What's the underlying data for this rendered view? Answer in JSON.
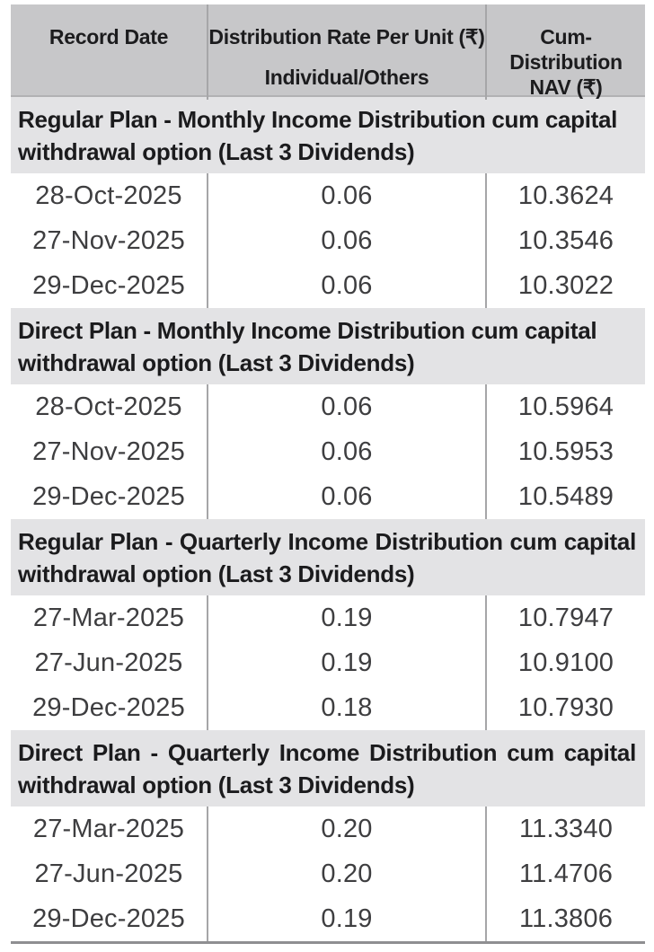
{
  "table": {
    "header": {
      "record_date": "Record Date",
      "rate_line1": "Distribution Rate Per Unit (₹)",
      "rate_line2": "Individual/Others",
      "nav_line1": "Cum-Distribution",
      "nav_line2": "NAV (₹)"
    },
    "sections": [
      {
        "title": "Regular Plan - Monthly Income Distribution cum capital withdrawal option (Last 3 Dividends)",
        "rows": [
          {
            "date": "28-Oct-2025",
            "rate": "0.06",
            "nav": "10.3624"
          },
          {
            "date": "27-Nov-2025",
            "rate": "0.06",
            "nav": "10.3546"
          },
          {
            "date": "29-Dec-2025",
            "rate": "0.06",
            "nav": "10.3022"
          }
        ]
      },
      {
        "title": "Direct Plan - Monthly Income Distribution cum capital withdrawal option (Last 3 Dividends)",
        "rows": [
          {
            "date": "28-Oct-2025",
            "rate": "0.06",
            "nav": "10.5964"
          },
          {
            "date": "27-Nov-2025",
            "rate": "0.06",
            "nav": "10.5953"
          },
          {
            "date": "29-Dec-2025",
            "rate": "0.06",
            "nav": "10.5489"
          }
        ]
      },
      {
        "title": "Regular Plan - Quarterly Income Distribution cum capital withdrawal option (Last 3 Dividends)",
        "rows": [
          {
            "date": "27-Mar-2025",
            "rate": "0.19",
            "nav": "10.7947"
          },
          {
            "date": "27-Jun-2025",
            "rate": "0.19",
            "nav": "10.9100"
          },
          {
            "date": "29-Dec-2025",
            "rate": "0.18",
            "nav": "10.7930"
          }
        ]
      },
      {
        "title": "Direct Plan - Quarterly Income Distribution cum capital withdrawal option (Last 3 Dividends)",
        "rows": [
          {
            "date": "27-Mar-2025",
            "rate": "0.20",
            "nav": "11.3340"
          },
          {
            "date": "27-Jun-2025",
            "rate": "0.20",
            "nav": "11.4706"
          },
          {
            "date": "29-Dec-2025",
            "rate": "0.19",
            "nav": "11.3806"
          }
        ]
      }
    ],
    "colors": {
      "header_bg": "#c7c7c9",
      "section_bg": "#e3e3e5",
      "divider": "#a6a6a8",
      "bottom_border": "#8f8f91"
    }
  }
}
